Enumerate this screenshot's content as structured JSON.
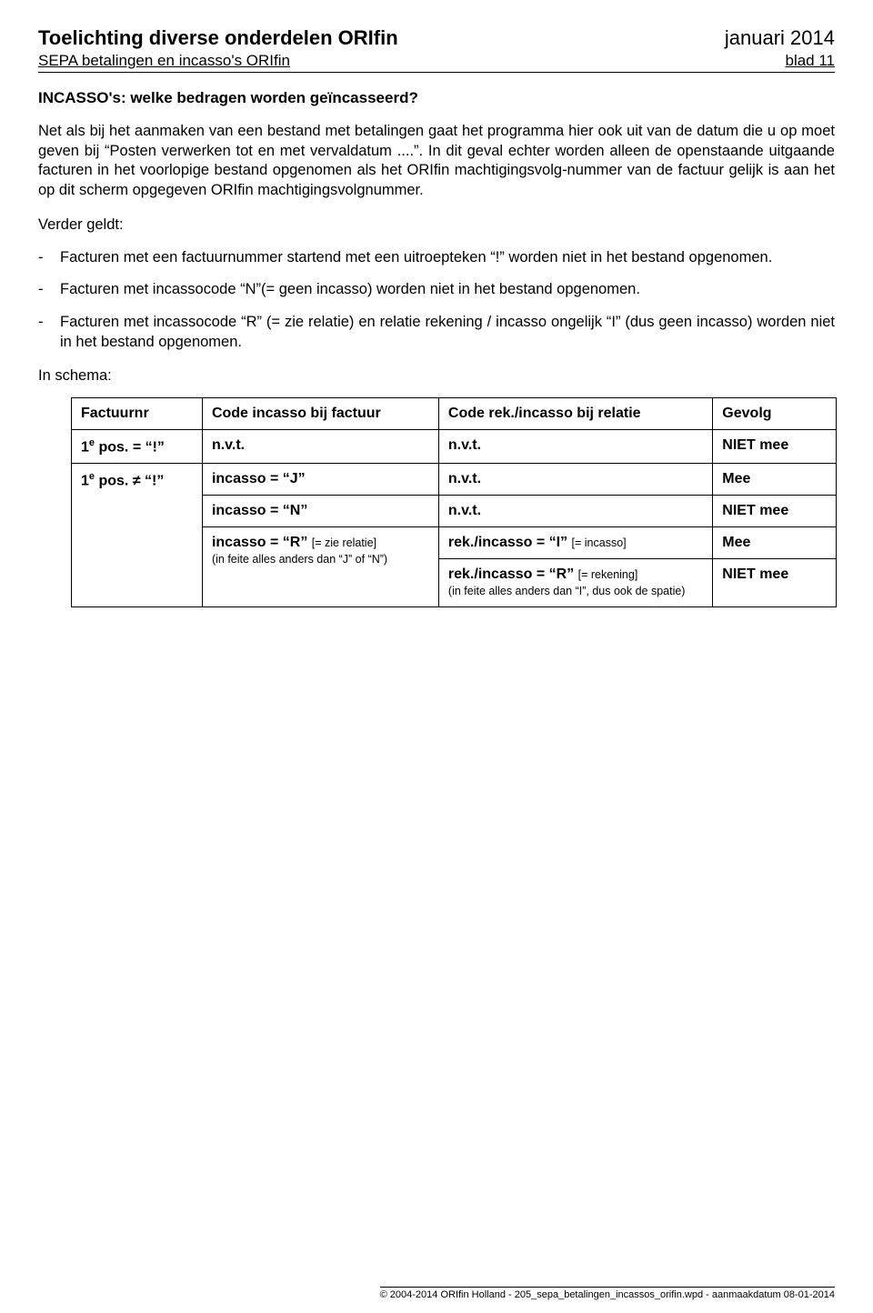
{
  "header": {
    "title": "Toelichting diverse onderdelen ORIfin",
    "date": "januari 2014",
    "sub_left": "SEPA betalingen en incasso's ORIfin",
    "sub_right": "blad 11"
  },
  "section_heading": "INCASSO's: welke bedragen worden geïncasseerd?",
  "para1": "Net als bij het aanmaken van een bestand met betalingen gaat het programma hier ook uit van de datum die u op moet geven bij “Posten verwerken tot en met vervaldatum ....”. In dit geval echter worden alleen de openstaande uitgaande facturen in het voorlopige bestand opgenomen als het ORIfin machtigingsvolg-nummer van de factuur gelijk is aan het op dit scherm opgegeven ORIfin machtigingsvolgnummer.",
  "lead": "Verder geldt:",
  "bullets": [
    "Facturen met een factuurnummer startend met een uitroepteken “!” worden niet in het bestand opgenomen.",
    "Facturen met incassocode “N”(= geen incasso) worden niet in het bestand opgenomen.",
    "Facturen met incassocode “R” (= zie relatie) en relatie rekening / incasso ongelijk “I” (dus geen incasso) worden niet in het bestand opgenomen."
  ],
  "schema_label": "In schema:",
  "table": {
    "headers": [
      "Factuurnr",
      "Code incasso bij factuur",
      "Code rek./incasso bij relatie",
      "Gevolg"
    ],
    "rows": [
      {
        "c1": "1e pos. = “!”",
        "c2": "n.v.t.",
        "c3": "n.v.t.",
        "c4": "NIET mee"
      },
      {
        "c1": "1e pos. ≠ “!”",
        "c2": "incasso = “J”",
        "c3": "n.v.t.",
        "c4": "Mee"
      },
      {
        "c1": "",
        "c2": "incasso = “N”",
        "c3": "n.v.t.",
        "c4": "NIET mee"
      },
      {
        "c1": "",
        "c2": "incasso = “R” [= zie relatie]",
        "c2_sub": "(in feite alles anders dan “J” of “N”)",
        "c3": "rek./incasso = “I” [= incasso]",
        "c4": "Mee"
      },
      {
        "c1": "",
        "c2": "",
        "c3": "rek./incasso = “R” [= rekening]",
        "c3_sub": "(in feite alles anders dan “I”, dus ook de spatie)",
        "c4": "NIET mee"
      }
    ]
  },
  "footer": "© 2004-2014 ORIfin Holland - 205_sepa_betalingen_incassos_orifin.wpd - aanmaakdatum 08-01-2014"
}
